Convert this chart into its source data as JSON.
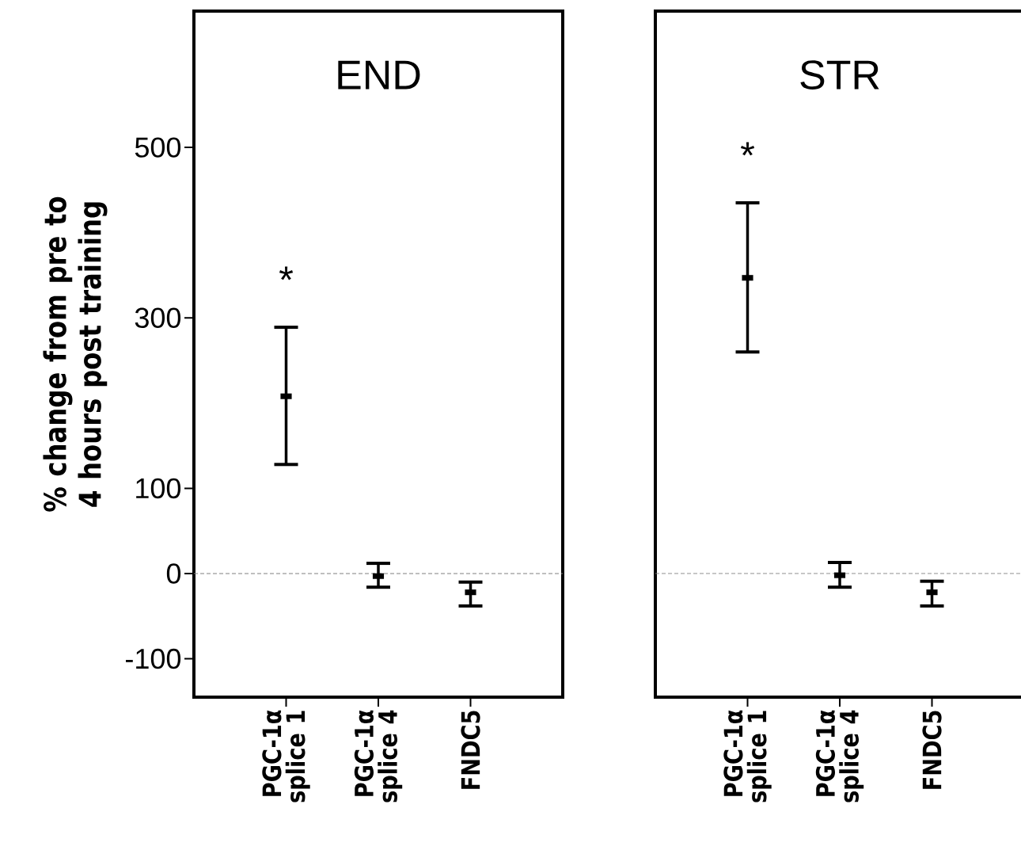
{
  "chart_data": [
    {
      "type": "scatter",
      "title": "END",
      "ylabel": "% change from pre to 4 hours post training",
      "categories": [
        "PGC-1α splice 1",
        "PGC-1α splice 4",
        "FNDC5"
      ],
      "series": [
        {
          "color": "#000000",
          "values": [
            208,
            -3,
            -22
          ],
          "errors": [
            [
              128,
              289
            ],
            [
              -16,
              12
            ],
            [
              -38,
              -10
            ]
          ]
        }
      ],
      "ylim": [
        -145,
        660
      ],
      "yticks": [
        -100,
        0,
        100,
        300,
        500
      ],
      "ref_lines": [
        {
          "axis": "y",
          "value": 0,
          "color": "#808080",
          "line_style": "dashed"
        }
      ],
      "annotations": [
        "*"
      ],
      "grid": false
    },
    {
      "type": "scatter",
      "title": "STR",
      "categories": [
        "PGC-1α splice 1",
        "PGC-1α splice 4",
        "FNDC5"
      ],
      "series": [
        {
          "color": "#000000",
          "values": [
            347,
            -2,
            -22
          ],
          "errors": [
            [
              260,
              435
            ],
            [
              -16,
              13
            ],
            [
              -38,
              -9
            ]
          ]
        }
      ],
      "ylim": [
        -145,
        660
      ],
      "tick_labels": "x",
      "ref_lines": [
        {
          "axis": "y",
          "value": 0,
          "color": "#808080",
          "line_style": "dashed"
        }
      ],
      "annotations": [
        "*"
      ],
      "grid": false
    }
  ]
}
